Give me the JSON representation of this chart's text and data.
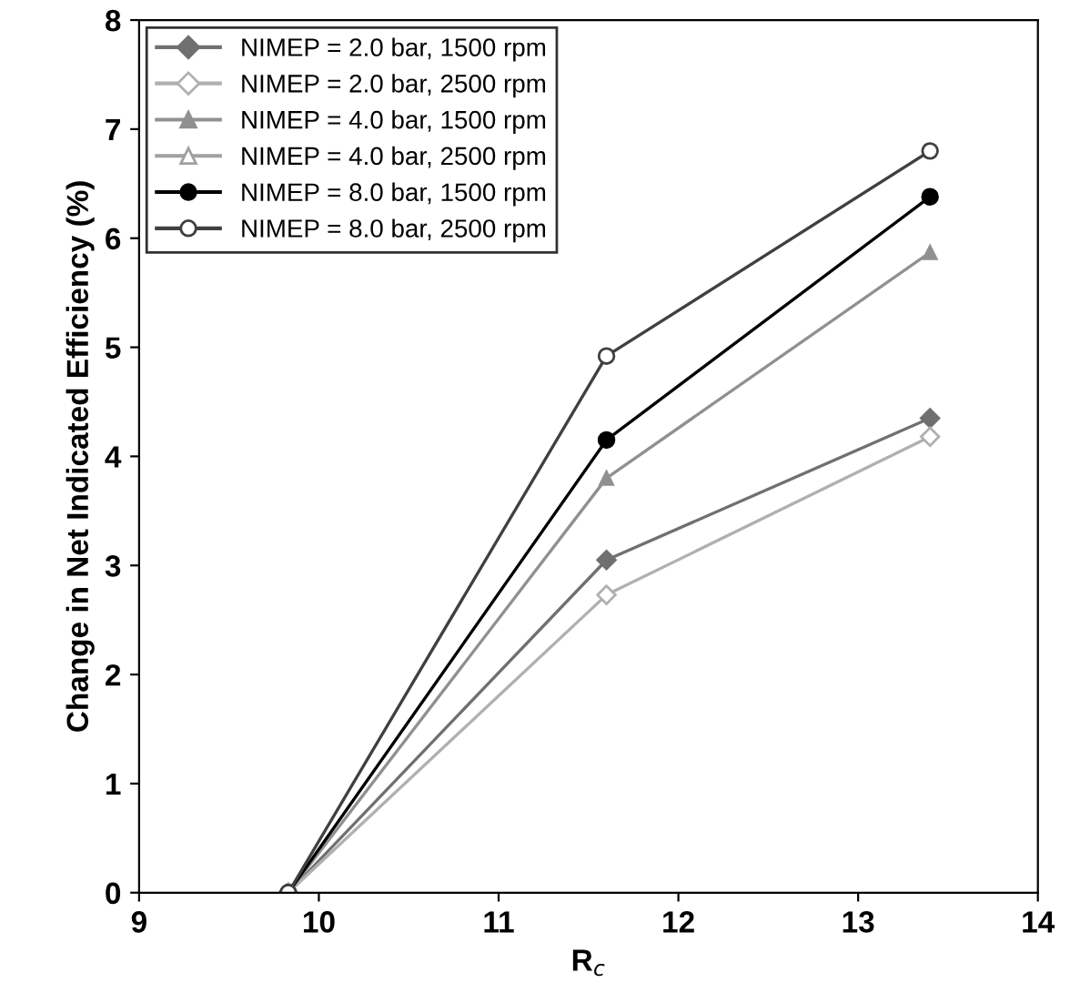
{
  "chart_data": {
    "type": "line",
    "xlabel": "R$_{c}$",
    "ylabel": "Change in Net Indicated Efficiency (%)",
    "xlim": [
      9,
      14
    ],
    "xticks": [
      9,
      10,
      11,
      12,
      13,
      14
    ],
    "ylim": [
      0,
      8
    ],
    "yticks": [
      0,
      1,
      2,
      3,
      4,
      5,
      6,
      7,
      8
    ],
    "grid": false,
    "legend": "top left",
    "line_style": "solid",
    "series": [
      {
        "name": "NIMEP = 2.0 bar, 1500 rpm",
        "color": "#707070",
        "marker": "diamond",
        "x": [
          9.83,
          11.6,
          13.4
        ],
        "values": [
          0,
          3.05,
          4.35
        ]
      },
      {
        "name": "NIMEP = 2.0 bar, 2500 rpm",
        "color": "#b0b0b0",
        "marker": "diamond",
        "x": [
          9.83,
          11.6,
          13.4
        ],
        "values": [
          0,
          2.73,
          4.18
        ]
      },
      {
        "name": "NIMEP = 4.0 bar, 1500 rpm",
        "color": "#909090",
        "marker": "triangle",
        "x": [
          9.83,
          11.6,
          13.4
        ],
        "values": [
          0,
          3.8,
          5.87
        ]
      },
      {
        "name": "NIMEP = 4.0 bar, 2500 rpm",
        "color": "#a0a0a0",
        "marker": "triangle"
      },
      {
        "name": "NIMEP = 8.0 bar, 1500 rpm",
        "color": "#000000",
        "marker": "circle",
        "x": [
          9.83,
          11.6,
          13.4
        ],
        "values": [
          0,
          4.15,
          6.38
        ]
      },
      {
        "name": "NIMEP = 8.0 bar, 2500 rpm",
        "color": "#404040",
        "marker": "circle",
        "x": [
          9.83,
          11.6,
          13.4
        ],
        "values": [
          0,
          4.92,
          6.8
        ]
      }
    ]
  }
}
